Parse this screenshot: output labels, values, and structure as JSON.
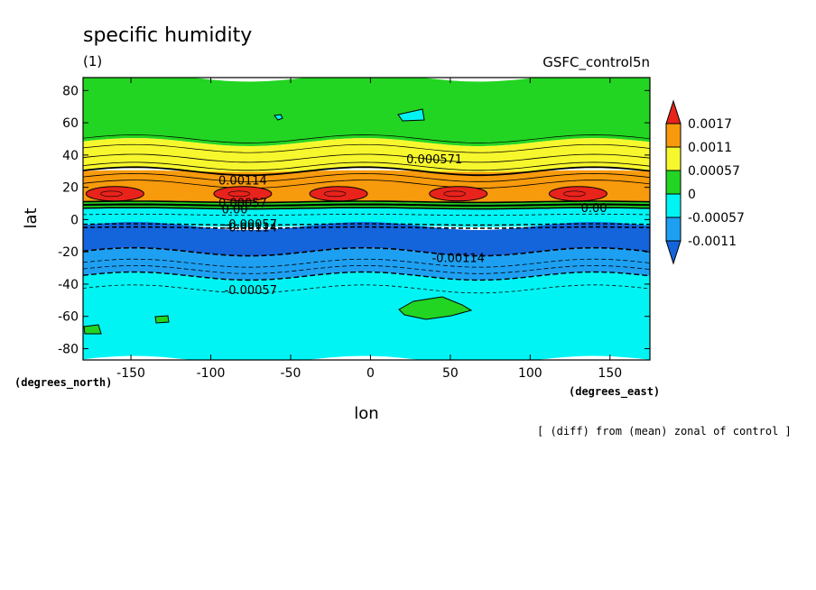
{
  "chart_data": {
    "type": "heatmap",
    "title": "specific humidity",
    "subtitle": "(1)",
    "run_label": "GSFC_control5n",
    "xlabel": "lon",
    "ylabel": "lat",
    "x_unit_label": "(degrees_east)",
    "y_unit_label": "(degrees_north)",
    "xlim": [
      -180,
      175
    ],
    "ylim": [
      -87,
      88
    ],
    "x_ticks": [
      -150,
      -100,
      -50,
      0,
      50,
      100,
      150
    ],
    "y_ticks": [
      80,
      60,
      40,
      20,
      0,
      -20,
      -40,
      -60,
      -80
    ],
    "grid": false,
    "footnote": "[ (diff) from (mean) zonal of control ]",
    "colorbar": {
      "labels": [
        "0.0017",
        "0.0011",
        "0.00057",
        "0",
        "-0.00057",
        "-0.0011"
      ],
      "colors": [
        "#e8231c",
        "#f79a0c",
        "#f7f72e",
        "#22d522",
        "#00f4f4",
        "#1ea0f2",
        "#1464dc"
      ]
    },
    "bands": [
      {
        "lat_min": 48,
        "lat_max": 88,
        "level": "0 to 0.00057",
        "color": "#22d522"
      },
      {
        "lat_min": 30,
        "lat_max": 48,
        "level": "0.00057 to 0.0011",
        "color": "#f7f72e"
      },
      {
        "lat_min": 11,
        "lat_max": 30,
        "level": "0.0011 to 0.0017",
        "color": "#f79a0c"
      },
      {
        "lat_min": 7,
        "lat_max": 11,
        "level": "0 to 0.00057",
        "color": "#22d522"
      },
      {
        "lat_min": -4,
        "lat_max": 7,
        "level": "-0.00057 to 0",
        "color": "#00f4f4"
      },
      {
        "lat_min": -20,
        "lat_max": -4,
        "level": "below -0.0011",
        "color": "#1464dc"
      },
      {
        "lat_min": -35,
        "lat_max": -20,
        "level": "-0.0011 to -0.00057",
        "color": "#1ea0f2"
      },
      {
        "lat_min": -87,
        "lat_max": -35,
        "level": "-0.00057 to 0",
        "color": "#00f4f4"
      }
    ],
    "maxima": [
      {
        "lon": -160,
        "lat": 16
      },
      {
        "lon": -80,
        "lat": 16
      },
      {
        "lon": -20,
        "lat": 16
      },
      {
        "lon": 55,
        "lat": 16
      },
      {
        "lon": 130,
        "lat": 16
      }
    ],
    "contour_labels": [
      {
        "text": "0.000571",
        "lon": 40,
        "lat": 37
      },
      {
        "text": "0.00114",
        "lon": -80,
        "lat": 24
      },
      {
        "text": "0.00057",
        "lon": -80,
        "lat": 10
      },
      {
        "text": "0.00",
        "lon": -85,
        "lat": 6
      },
      {
        "text": "0.00",
        "lon": 140,
        "lat": 7
      },
      {
        "text": "-0.00057",
        "lon": -75,
        "lat": -3
      },
      {
        "text": "-0.00114",
        "lon": -75,
        "lat": -5
      },
      {
        "text": "-0.00114",
        "lon": 55,
        "lat": -24
      },
      {
        "text": "-0.00057",
        "lon": -75,
        "lat": -44
      }
    ]
  }
}
